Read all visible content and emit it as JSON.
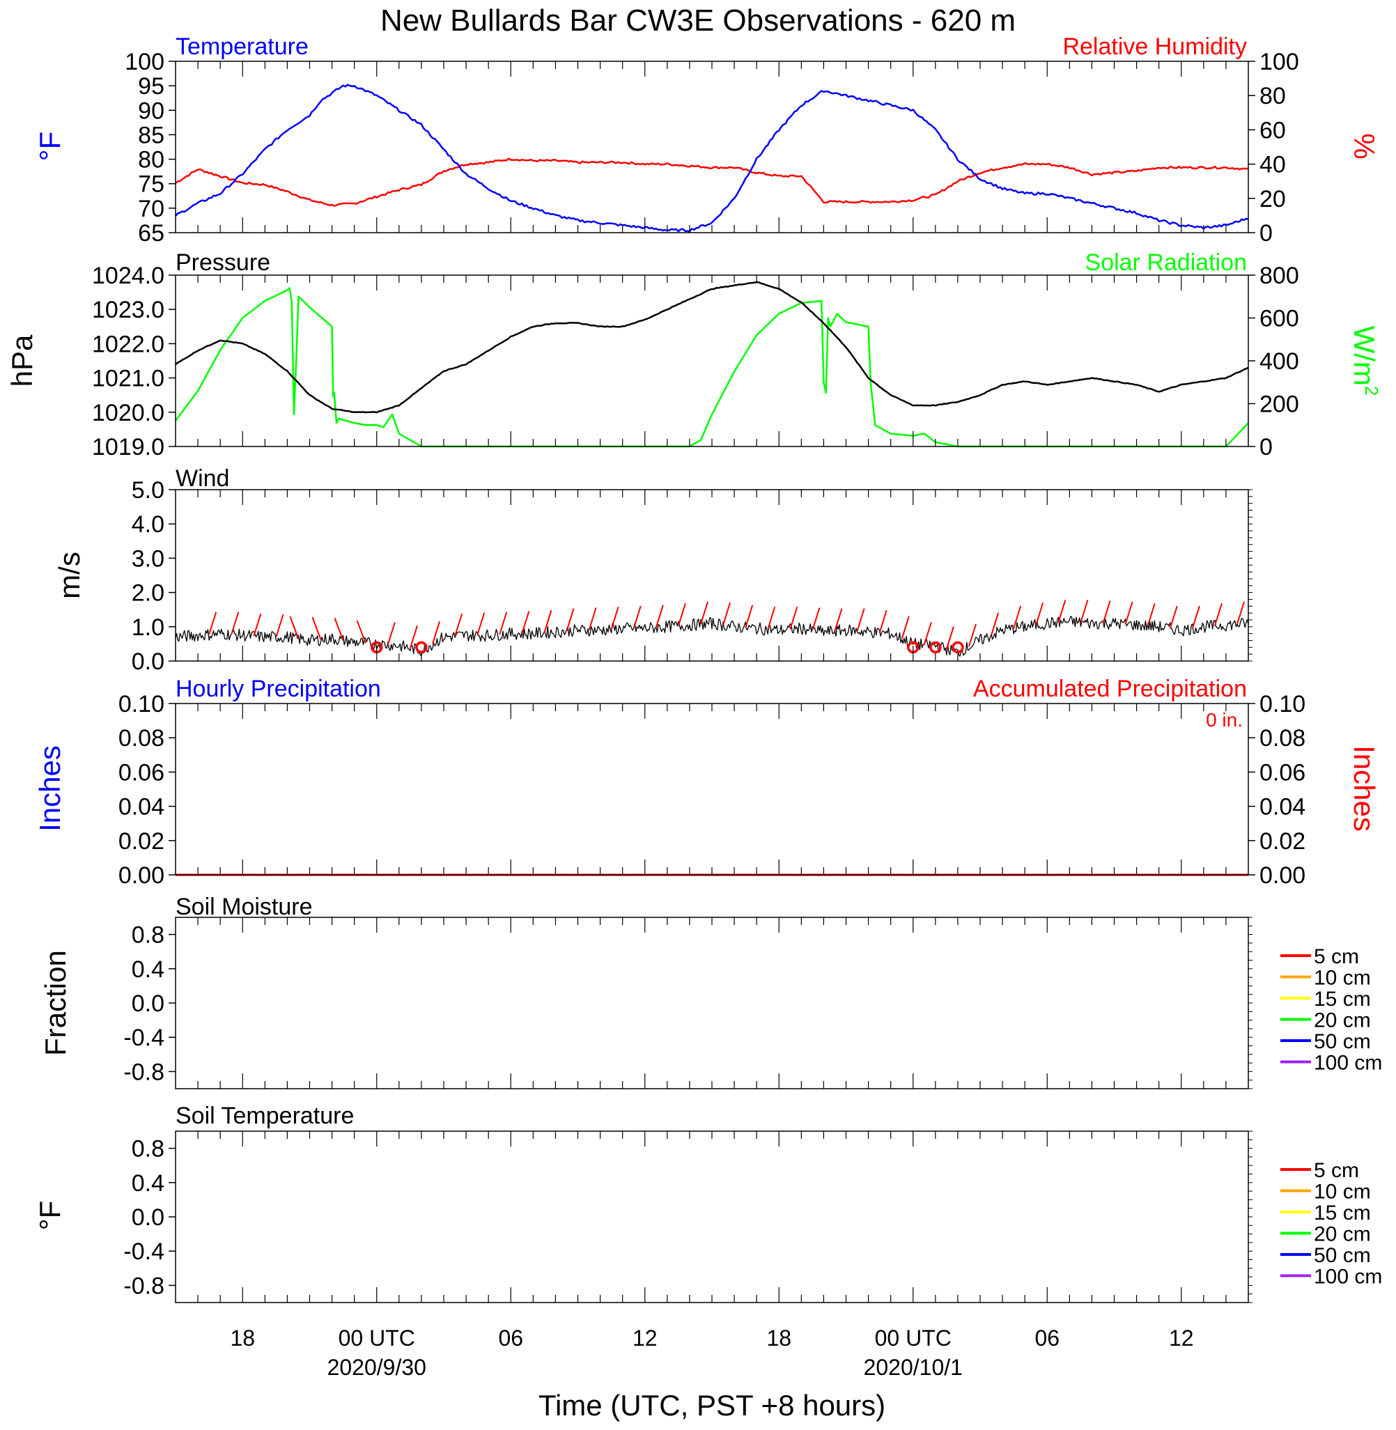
{
  "title": "New Bullards Bar CW3E Observations - 620 m",
  "x_axis": {
    "label": "Time (UTC, PST +8 hours)",
    "hours_range": [
      -9,
      39
    ],
    "major_ticks": [
      {
        "h": -6,
        "label": "18",
        "date": ""
      },
      {
        "h": 0,
        "label": "00 UTC",
        "date": "2020/9/30"
      },
      {
        "h": 6,
        "label": "06",
        "date": ""
      },
      {
        "h": 12,
        "label": "12",
        "date": ""
      },
      {
        "h": 18,
        "label": "18",
        "date": ""
      },
      {
        "h": 24,
        "label": "00 UTC",
        "date": "2020/10/1"
      },
      {
        "h": 30,
        "label": "06",
        "date": ""
      },
      {
        "h": 36,
        "label": "12",
        "date": ""
      }
    ]
  },
  "panels": {
    "temp": {
      "left_title": "Temperature",
      "right_title": "Relative Humidity",
      "left_unit": "°F",
      "right_unit": "%",
      "left_ticks": [
        "65",
        "70",
        "75",
        "80",
        "85",
        "90",
        "95",
        "100"
      ],
      "right_ticks": [
        "0",
        "20",
        "40",
        "60",
        "80",
        "100"
      ]
    },
    "pressure": {
      "left_title": "Pressure",
      "right_title": "Solar Radiation",
      "left_unit": "hPa",
      "right_unit_base": "W/m",
      "right_unit_sup": "2",
      "left_ticks": [
        "1019.0",
        "1020.0",
        "1021.0",
        "1022.0",
        "1023.0",
        "1024.0"
      ],
      "right_ticks": [
        "0",
        "200",
        "400",
        "600",
        "800"
      ]
    },
    "wind": {
      "left_title": "Wind",
      "left_unit": "m/s",
      "left_ticks": [
        "0.0",
        "1.0",
        "2.0",
        "3.0",
        "4.0",
        "5.0"
      ]
    },
    "precip": {
      "left_title": "Hourly Precipitation",
      "right_title": "Accumulated Precipitation",
      "left_unit": "Inches",
      "right_unit": "Inches",
      "total_label": "0 in.",
      "left_ticks": [
        "0.00",
        "0.02",
        "0.04",
        "0.06",
        "0.08",
        "0.10"
      ],
      "right_ticks": [
        "0.00",
        "0.02",
        "0.04",
        "0.06",
        "0.08",
        "0.10"
      ]
    },
    "soil_moist": {
      "left_title": "Soil Moisture",
      "left_unit": "Fraction",
      "left_ticks": [
        "-0.8",
        "-0.4",
        "0.0",
        "0.4",
        "0.8"
      ]
    },
    "soil_temp": {
      "left_title": "Soil Temperature",
      "left_unit": "°F",
      "left_ticks": [
        "-0.8",
        "-0.4",
        "0.0",
        "0.4",
        "0.8"
      ]
    }
  },
  "soil_legend": [
    {
      "label": "5 cm",
      "color": "#ff0000"
    },
    {
      "label": "10 cm",
      "color": "#ffa500"
    },
    {
      "label": "15 cm",
      "color": "#ffff00"
    },
    {
      "label": "20 cm",
      "color": "#00ff00"
    },
    {
      "label": "50 cm",
      "color": "#0000ff"
    },
    {
      "label": "100 cm",
      "color": "#a020f0"
    }
  ],
  "colors": {
    "temperature": "#0000ff",
    "humidity": "#ff0000",
    "pressure": "#000000",
    "solar": "#00ff00",
    "wind": "#000000",
    "barbs": "#ff0000",
    "precip": "#ff0000"
  },
  "chart_data": [
    {
      "type": "line",
      "panel": "temp",
      "x_units": "hours from 2020-09-30 00 UTC",
      "series": [
        {
          "name": "Temperature",
          "axis": "left",
          "unit": "°F",
          "ylim": [
            65,
            100
          ],
          "x": [
            -9,
            -8,
            -7,
            -6,
            -5,
            -4,
            -3,
            -2.5,
            -2,
            -1.5,
            -1,
            0,
            1,
            2,
            3,
            4,
            5,
            6,
            7,
            8,
            9,
            10,
            11,
            12,
            13,
            14,
            15,
            16,
            17,
            18,
            19,
            20,
            21,
            22,
            23,
            24,
            25,
            26,
            27,
            28,
            29,
            30,
            31,
            32,
            33,
            34,
            35,
            36,
            37,
            38,
            39
          ],
          "y": [
            68.5,
            71,
            73,
            77,
            82,
            86,
            89,
            92,
            93.5,
            95,
            95,
            93,
            90,
            87,
            82,
            77,
            74,
            71.5,
            70,
            68.5,
            67.5,
            67,
            66.5,
            66,
            65.5,
            65.5,
            67,
            72,
            80,
            86,
            91,
            94,
            93,
            92,
            91,
            90,
            86,
            80,
            76,
            74,
            73,
            73,
            72,
            71,
            70,
            69,
            67.5,
            66.5,
            66,
            66.5,
            68
          ]
        },
        {
          "name": "Relative Humidity",
          "axis": "right",
          "unit": "%",
          "ylim": [
            0,
            100
          ],
          "x": [
            -9,
            -8,
            -7,
            -6,
            -5,
            -4,
            -3,
            -2,
            -1,
            0,
            1,
            2,
            3,
            4,
            5,
            6,
            7,
            8,
            9,
            10,
            11,
            12,
            13,
            14,
            15,
            16,
            17,
            18,
            19,
            20,
            21,
            22,
            23,
            24,
            25,
            26,
            27,
            28,
            29,
            30,
            31,
            32,
            33,
            34,
            35,
            36,
            37,
            38,
            39
          ],
          "y": [
            29,
            37,
            33,
            29,
            28,
            24,
            19,
            16,
            17,
            21,
            25,
            28,
            36,
            40,
            41,
            43,
            42,
            42,
            41,
            41,
            41,
            40,
            40,
            39,
            38,
            38,
            35,
            33,
            33,
            18,
            18,
            18,
            18,
            19,
            22,
            30,
            35,
            38,
            40,
            40,
            38,
            34,
            35,
            36,
            38,
            38,
            38,
            38,
            37
          ]
        }
      ]
    },
    {
      "type": "line",
      "panel": "pressure",
      "x_units": "hours from 2020-09-30 00 UTC",
      "series": [
        {
          "name": "Pressure",
          "axis": "left",
          "unit": "hPa",
          "ylim": [
            1019.0,
            1024.0
          ],
          "x": [
            -9,
            -8,
            -7,
            -6,
            -5,
            -4,
            -3,
            -2,
            -1,
            0,
            1,
            2,
            3,
            4,
            5,
            6,
            7,
            8,
            9,
            10,
            11,
            12,
            13,
            14,
            15,
            16,
            17,
            18,
            19,
            20,
            21,
            22,
            23,
            24,
            25,
            26,
            27,
            28,
            29,
            30,
            31,
            32,
            33,
            34,
            35,
            36,
            37,
            38,
            39
          ],
          "y": [
            1021.4,
            1021.8,
            1022.1,
            1022.0,
            1021.7,
            1021.2,
            1020.5,
            1020.1,
            1020.0,
            1020.0,
            1020.2,
            1020.7,
            1021.2,
            1021.4,
            1021.8,
            1022.2,
            1022.5,
            1022.6,
            1022.6,
            1022.5,
            1022.5,
            1022.7,
            1023.0,
            1023.3,
            1023.6,
            1023.7,
            1023.8,
            1023.6,
            1023.2,
            1022.6,
            1021.9,
            1021.0,
            1020.5,
            1020.2,
            1020.2,
            1020.3,
            1020.5,
            1020.8,
            1020.9,
            1020.8,
            1020.9,
            1021.0,
            1020.9,
            1020.8,
            1020.6,
            1020.8,
            1020.9,
            1021.0,
            1021.3
          ]
        },
        {
          "name": "Solar Radiation",
          "axis": "right",
          "unit": "W/m2",
          "ylim": [
            0,
            800
          ],
          "x": [
            -9,
            -8,
            -7,
            -6,
            -5,
            -4,
            -3.9,
            -3.8,
            -3.7,
            -3.6,
            -3.5,
            -3.3,
            -3,
            -2,
            -2.05,
            -1.9,
            -1.8,
            -1.7,
            -1,
            -0.5,
            0,
            0.3,
            0.7,
            1,
            1.5,
            2,
            14,
            14.5,
            15,
            16,
            17,
            18,
            19,
            19.9,
            20,
            20.1,
            20.2,
            20.3,
            20.6,
            21,
            22,
            22.1,
            22.3,
            23,
            24,
            24.5,
            25,
            26,
            37,
            38,
            39
          ],
          "y": [
            120,
            260,
            450,
            600,
            680,
            730,
            740,
            680,
            150,
            400,
            700,
            680,
            650,
            560,
            200,
            250,
            110,
            130,
            110,
            100,
            100,
            90,
            150,
            60,
            30,
            0,
            0,
            30,
            150,
            350,
            520,
            620,
            670,
            680,
            300,
            250,
            600,
            560,
            620,
            580,
            560,
            300,
            100,
            60,
            50,
            60,
            20,
            0,
            0,
            0,
            110
          ]
        }
      ]
    },
    {
      "type": "line",
      "panel": "wind",
      "x_units": "hours from 2020-09-30 00 UTC",
      "series": [
        {
          "name": "Wind",
          "unit": "m/s",
          "ylim": [
            0,
            5.0
          ],
          "x": [
            -9,
            -8,
            -7,
            -6,
            -5,
            -4,
            -3,
            -2,
            -1,
            0,
            1,
            2,
            3,
            4,
            5,
            6,
            7,
            8,
            9,
            10,
            11,
            12,
            13,
            14,
            15,
            16,
            17,
            18,
            19,
            20,
            21,
            22,
            23,
            24,
            25,
            26,
            27,
            28,
            29,
            30,
            31,
            32,
            33,
            34,
            35,
            36,
            37,
            38,
            39
          ],
          "y": [
            0.7,
            0.75,
            0.8,
            0.75,
            0.7,
            0.7,
            0.6,
            0.65,
            0.55,
            0.5,
            0.45,
            0.3,
            0.7,
            0.75,
            0.75,
            0.8,
            0.8,
            0.85,
            0.9,
            0.9,
            0.95,
            0.95,
            1.0,
            1.05,
            1.1,
            1.0,
            0.95,
            0.9,
            0.95,
            0.85,
            0.9,
            0.85,
            0.8,
            0.5,
            0.45,
            0.25,
            0.6,
            0.9,
            1.0,
            1.1,
            1.15,
            1.1,
            1.1,
            1.05,
            1.0,
            0.9,
            1.0,
            1.05,
            1.1
          ]
        }
      ],
      "calm_markers_x": [
        0,
        2,
        24,
        25,
        26
      ]
    },
    {
      "type": "bar",
      "panel": "precip",
      "x_units": "hours from 2020-09-30 00 UTC",
      "series": [
        {
          "name": "Hourly Precipitation",
          "unit": "in",
          "value": 0
        },
        {
          "name": "Accumulated Precipitation",
          "unit": "in",
          "value": 0
        }
      ],
      "ylim": [
        0,
        0.1
      ]
    },
    {
      "type": "line",
      "panel": "soil_moist",
      "series": [],
      "ylim": [
        -1.0,
        1.0
      ]
    },
    {
      "type": "line",
      "panel": "soil_temp",
      "series": [],
      "ylim": [
        -1.0,
        1.0
      ]
    }
  ]
}
